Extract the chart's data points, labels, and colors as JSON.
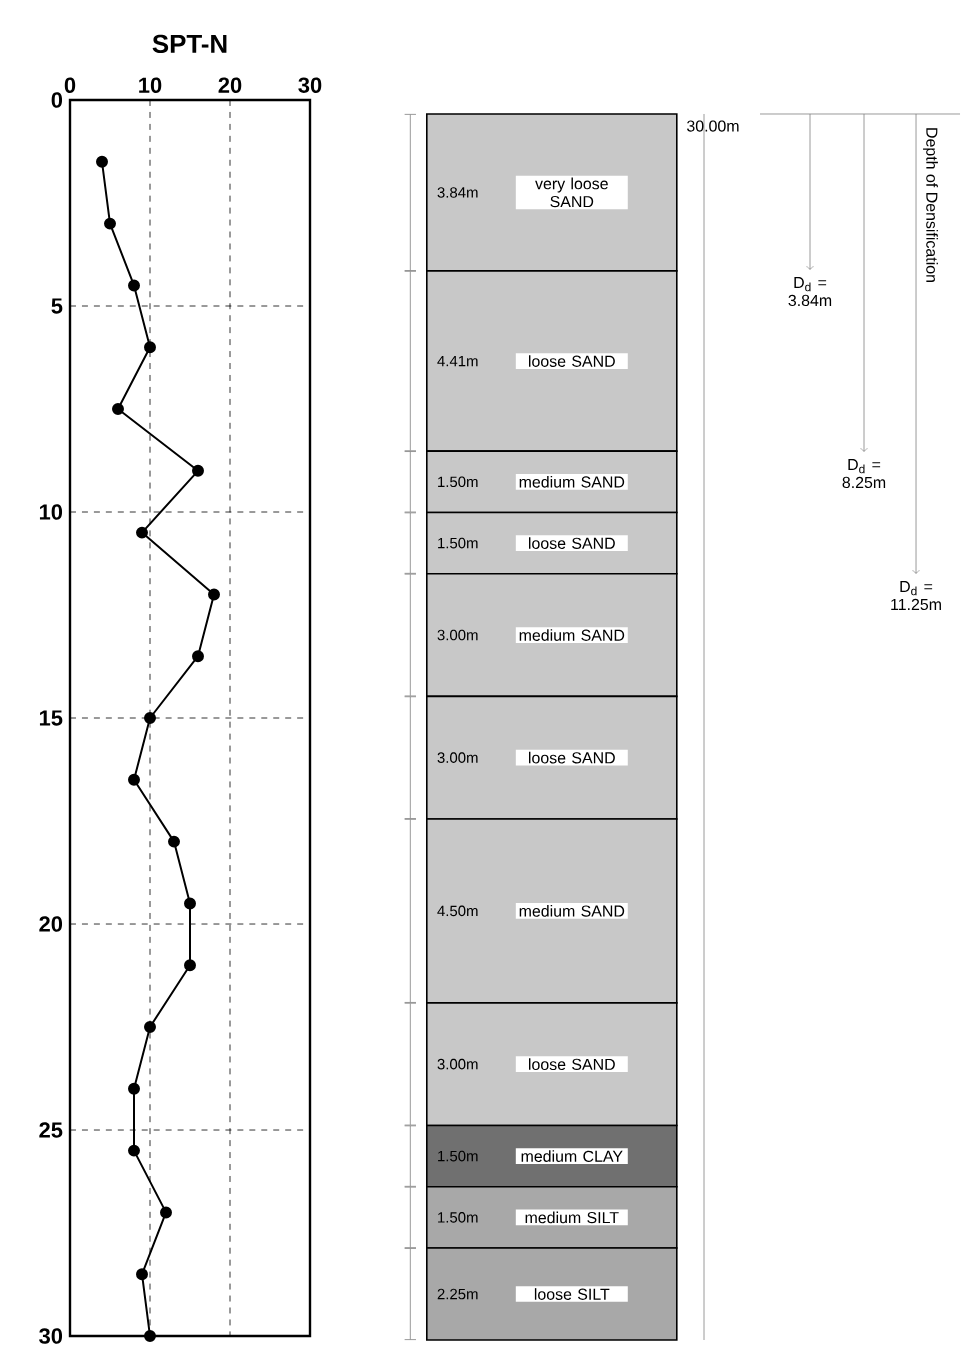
{
  "chart_data": [
    {
      "type": "line",
      "title": "SPT-N",
      "x": [
        4,
        5,
        8,
        10,
        6,
        16,
        9,
        18,
        16,
        10,
        8,
        13,
        15,
        15,
        10,
        8,
        8,
        12,
        9,
        10
      ],
      "values": [
        1.5,
        3,
        4.5,
        6,
        7.5,
        9,
        10.5,
        12,
        13.5,
        15,
        16.5,
        18,
        19.5,
        21,
        22.5,
        24,
        25.5,
        27,
        28.5,
        30
      ],
      "color": "#000000",
      "marker": "circle",
      "line_style": "solid",
      "xlim": [
        0,
        30
      ],
      "xticks": [
        0,
        10,
        20,
        30
      ],
      "ylim": [
        30,
        0
      ],
      "yticks": [
        0,
        5,
        10,
        15,
        20,
        25,
        30
      ],
      "grid": true
    },
    {
      "type": "bar",
      "stacked": true,
      "categories": [
        null
      ],
      "tick_labels": false,
      "series": [
        {
          "name": "loose SILT",
          "color": "#a8a8a8",
          "values": [
            2.25
          ],
          "value_labels": [
            "2.25m"
          ]
        },
        {
          "name": "medium SILT",
          "color": "#a8a8a8",
          "values": [
            1.5
          ],
          "value_labels": [
            "1.50m"
          ]
        },
        {
          "name": "medium CLAY",
          "color": "#707070",
          "values": [
            1.5
          ],
          "value_labels": [
            "1.50m"
          ]
        },
        {
          "name": "loose SAND",
          "color": "#c8c8c8",
          "values": [
            3.0
          ],
          "value_labels": [
            "3.00m"
          ]
        },
        {
          "name": "medium SAND",
          "color": "#c8c8c8",
          "values": [
            4.5
          ],
          "value_labels": [
            "4.50m"
          ]
        },
        {
          "name": "loose SAND",
          "color": "#c8c8c8",
          "values": [
            3.0
          ],
          "value_labels": [
            "3.00m"
          ]
        },
        {
          "name": "medium SAND",
          "color": "#c8c8c8",
          "values": [
            3.0
          ],
          "value_labels": [
            "3.00m"
          ]
        },
        {
          "name": "loose SAND",
          "color": "#c8c8c8",
          "values": [
            1.5
          ],
          "value_labels": [
            "1.50m"
          ]
        },
        {
          "name": "medium SAND",
          "color": "#c8c8c8",
          "values": [
            1.5
          ],
          "value_labels": [
            "1.50m"
          ]
        },
        {
          "name": "loose SAND",
          "color": "#c8c8c8",
          "values": [
            4.41
          ],
          "value_labels": [
            "4.41m"
          ]
        },
        {
          "name": "very loose SAND",
          "color": "#c8c8c8",
          "values": [
            3.84
          ],
          "value_labels": [
            "3.84m"
          ]
        }
      ],
      "totals": [
        "30.00m"
      ],
      "annotations": [
        "D$_{d}$ = 3.84m",
        "D$_{d}$ = 8.25m",
        "D$_{d}$ = 11.25m",
        "Depth of Densification"
      ]
    }
  ]
}
